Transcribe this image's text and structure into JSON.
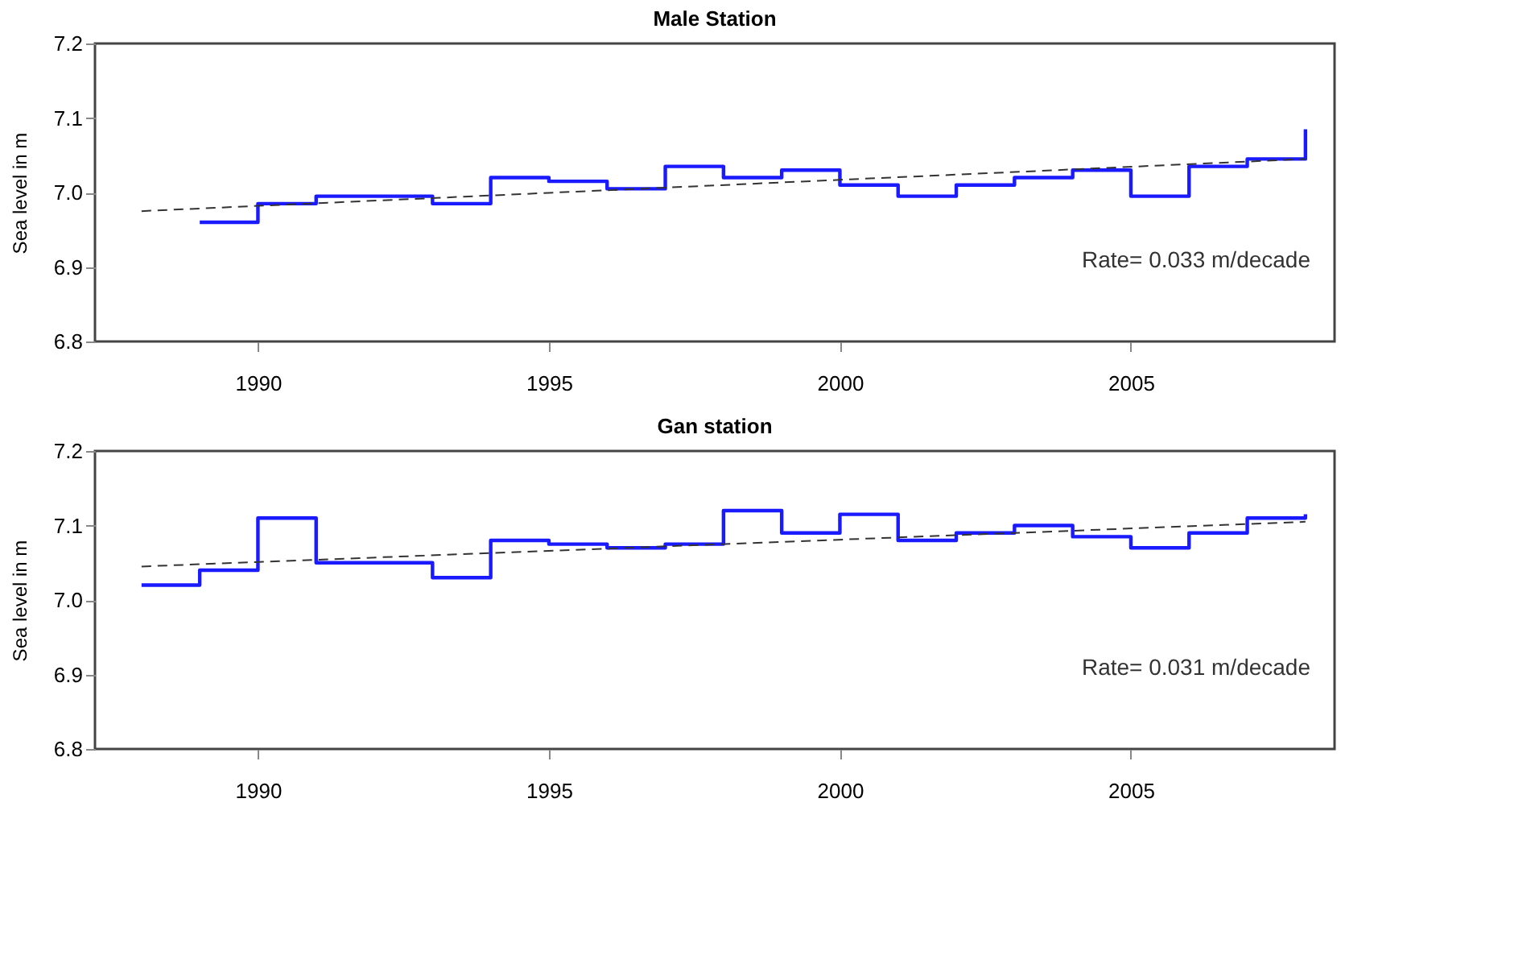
{
  "chart_data": [
    {
      "type": "step",
      "title": "Male Station",
      "ylabel": "Sea level in m",
      "series": [
        {
          "type": "step",
          "color": "#1a1aff",
          "line_style": "solid",
          "x": [
            1989,
            1990,
            1991,
            1992,
            1993,
            1994,
            1995,
            1996,
            1997,
            1998,
            1999,
            2000,
            2001,
            2002,
            2003,
            2004,
            2005,
            2006,
            2007,
            2008
          ],
          "values": [
            6.96,
            6.985,
            6.995,
            6.995,
            6.985,
            7.02,
            7.015,
            7.005,
            7.035,
            7.02,
            7.03,
            7.01,
            6.995,
            7.01,
            7.02,
            7.03,
            6.995,
            7.035,
            7.045,
            7.085
          ]
        },
        {
          "type": "line",
          "color": "#333333",
          "line_style": "dashed",
          "x": [
            1988,
            2008
          ],
          "values": [
            6.975,
            7.045
          ]
        }
      ],
      "xlim": [
        1987.2,
        2008.5
      ],
      "xticks": [
        1990,
        1995,
        2000,
        2005
      ],
      "ylim": [
        6.8,
        7.2
      ],
      "yticks": [
        6.8,
        6.9,
        {
          "value": 7.0,
          "label": "7.0"
        },
        7.1,
        7.2
      ],
      "annotations": [
        "Rate= 0.033 m/decade"
      ],
      "grid": false
    },
    {
      "type": "step",
      "title": "Gan station",
      "ylabel": "Sea level in m",
      "series": [
        {
          "type": "step",
          "color": "#1a1aff",
          "line_style": "solid",
          "x": [
            1988,
            1989,
            1990,
            1991,
            1992,
            1993,
            1994,
            1995,
            1996,
            1997,
            1998,
            1999,
            2000,
            2001,
            2002,
            2003,
            2004,
            2005,
            2006,
            2007,
            2008
          ],
          "values": [
            7.02,
            7.04,
            7.11,
            7.05,
            7.05,
            7.03,
            7.08,
            7.075,
            7.07,
            7.075,
            7.12,
            7.09,
            7.115,
            7.08,
            7.09,
            7.1,
            7.085,
            7.07,
            7.09,
            7.11,
            7.115
          ]
        },
        {
          "type": "line",
          "color": "#333333",
          "line_style": "dashed",
          "x": [
            1988,
            2008
          ],
          "values": [
            7.045,
            7.105
          ]
        }
      ],
      "xlim": [
        1987.2,
        2008.5
      ],
      "xticks": [
        1990,
        1995,
        2000,
        2005
      ],
      "ylim": [
        6.8,
        7.2
      ],
      "yticks": [
        6.8,
        6.9,
        {
          "value": 7.0,
          "label": "7.0"
        },
        7.1,
        7.2
      ],
      "annotations": [
        "Rate= 0.031 m/decade"
      ],
      "grid": false
    }
  ]
}
